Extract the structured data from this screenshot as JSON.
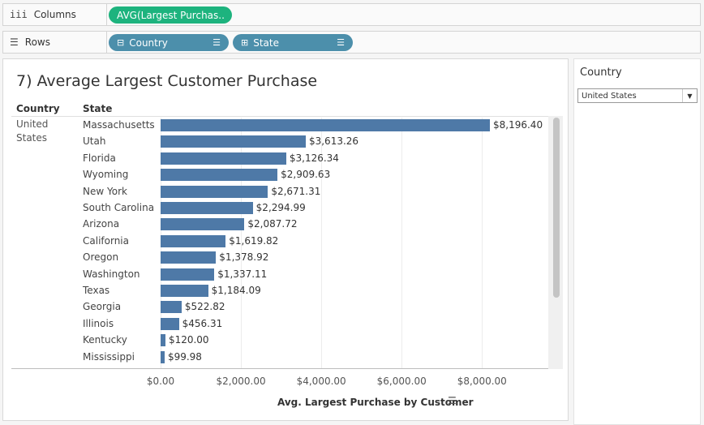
{
  "shelves": {
    "columns": {
      "label": "Columns",
      "icon": "iii",
      "pills": [
        {
          "text": "AVG(Largest Purchas.."
        }
      ]
    },
    "rows": {
      "label": "Rows",
      "icon": "☰",
      "pills": [
        {
          "prefix": "⊟",
          "text": "Country"
        },
        {
          "prefix": "⊞",
          "text": "State"
        }
      ]
    }
  },
  "sheet": {
    "title": "7) Average Largest Customer Purchase",
    "headers": {
      "country": "Country",
      "state": "State"
    },
    "country_value": "United States",
    "axis_title": "Avg. Largest Purchase by Customer"
  },
  "chart_data": {
    "type": "bar",
    "orientation": "horizontal",
    "categories": [
      "Massachusetts",
      "Utah",
      "Florida",
      "Wyoming",
      "New York",
      "South Carolina",
      "Arizona",
      "California",
      "Oregon",
      "Washington",
      "Texas",
      "Georgia",
      "Illinois",
      "Kentucky",
      "Mississippi"
    ],
    "values": [
      8196.4,
      3613.26,
      3126.34,
      2909.63,
      2671.31,
      2294.99,
      2087.72,
      1619.82,
      1378.92,
      1337.11,
      1184.09,
      522.82,
      456.31,
      120.0,
      99.98
    ],
    "value_labels": [
      "$8,196.40",
      "$3,613.26",
      "$3,126.34",
      "$2,909.63",
      "$2,671.31",
      "$2,294.99",
      "$2,087.72",
      "$1,619.82",
      "$1,378.92",
      "$1,337.11",
      "$1,184.09",
      "$522.82",
      "$456.31",
      "$120.00",
      "$99.98"
    ],
    "ticks": [
      0,
      2000,
      4000,
      6000,
      8000
    ],
    "tick_labels": [
      "$0.00",
      "$2,000.00",
      "$4,000.00",
      "$6,000.00",
      "$8,000.00"
    ],
    "xlabel": "Avg. Largest Purchase by Customer",
    "title": "7) Average Largest Customer Purchase",
    "bar_color": "#4e79a7",
    "grid": true
  },
  "filter": {
    "title": "Country",
    "selected": "United States"
  }
}
